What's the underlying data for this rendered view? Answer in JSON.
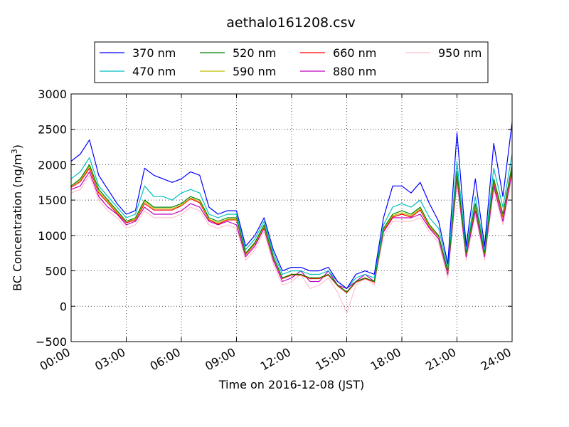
{
  "chart_data": {
    "type": "line",
    "title": "aethalo161208.csv",
    "xlabel": "Time on 2016-12-08 (JST)",
    "ylabel_main": "BC Concentration (ng/m",
    "ylabel_sup": "3",
    "ylabel_close": ")",
    "xlim": [
      0,
      24
    ],
    "ylim": [
      -500,
      3000
    ],
    "grid": true,
    "legend_position": "top",
    "x_ticks": [
      {
        "v": 0,
        "label": "00:00"
      },
      {
        "v": 3,
        "label": "03:00"
      },
      {
        "v": 6,
        "label": "06:00"
      },
      {
        "v": 9,
        "label": "09:00"
      },
      {
        "v": 12,
        "label": "12:00"
      },
      {
        "v": 15,
        "label": "15:00"
      },
      {
        "v": 18,
        "label": "18:00"
      },
      {
        "v": 21,
        "label": "21:00"
      },
      {
        "v": 24,
        "label": "24:00"
      }
    ],
    "y_ticks": [
      {
        "v": -500,
        "label": "−500"
      },
      {
        "v": 0,
        "label": "0"
      },
      {
        "v": 500,
        "label": "500"
      },
      {
        "v": 1000,
        "label": "1000"
      },
      {
        "v": 1500,
        "label": "1500"
      },
      {
        "v": 2000,
        "label": "2000"
      },
      {
        "v": 2500,
        "label": "2500"
      },
      {
        "v": 3000,
        "label": "3000"
      }
    ],
    "x": [
      0,
      0.5,
      1,
      1.5,
      2,
      2.5,
      3,
      3.5,
      4,
      4.5,
      5,
      5.5,
      6,
      6.5,
      7,
      7.5,
      8,
      8.5,
      9,
      9.5,
      10,
      10.5,
      11,
      11.5,
      12,
      12.5,
      13,
      13.5,
      14,
      14.5,
      15,
      15.5,
      16,
      16.5,
      17,
      17.5,
      18,
      18.5,
      19,
      19.5,
      20,
      20.5,
      21,
      21.5,
      22,
      22.5,
      23,
      23.5,
      24
    ],
    "series": [
      {
        "name": "370 nm",
        "color": "#0000ff",
        "values": [
          2050,
          2150,
          2350,
          1850,
          1650,
          1450,
          1300,
          1350,
          1950,
          1850,
          1800,
          1750,
          1800,
          1900,
          1850,
          1400,
          1300,
          1350,
          1350,
          850,
          1000,
          1250,
          800,
          500,
          550,
          550,
          500,
          500,
          550,
          350,
          250,
          450,
          500,
          450,
          1250,
          1700,
          1700,
          1600,
          1750,
          1450,
          1200,
          600,
          2450,
          850,
          1800,
          850,
          2300,
          1550,
          2600
        ]
      },
      {
        "name": "470 nm",
        "color": "#00bfbf",
        "values": [
          1800,
          1900,
          2100,
          1700,
          1550,
          1400,
          1250,
          1300,
          1700,
          1550,
          1550,
          1500,
          1600,
          1650,
          1600,
          1300,
          1250,
          1300,
          1300,
          800,
          950,
          1200,
          750,
          450,
          500,
          500,
          450,
          450,
          500,
          350,
          250,
          400,
          450,
          400,
          1150,
          1400,
          1450,
          1400,
          1500,
          1250,
          1100,
          550,
          2050,
          800,
          1550,
          800,
          1950,
          1400,
          2150
        ]
      },
      {
        "name": "520 nm",
        "color": "#008000",
        "values": [
          1700,
          1800,
          2000,
          1650,
          1500,
          1350,
          1200,
          1250,
          1500,
          1400,
          1400,
          1400,
          1450,
          1550,
          1500,
          1250,
          1200,
          1250,
          1250,
          750,
          900,
          1150,
          700,
          400,
          450,
          450,
          400,
          400,
          450,
          300,
          200,
          350,
          400,
          350,
          1100,
          1300,
          1350,
          1300,
          1400,
          1150,
          1000,
          500,
          1900,
          750,
          1450,
          750,
          1800,
          1300,
          2000
        ]
      },
      {
        "name": "590 nm",
        "color": "#bfbf00",
        "values": [
          1700,
          1780,
          1980,
          1620,
          1480,
          1330,
          1200,
          1230,
          1480,
          1380,
          1380,
          1380,
          1430,
          1530,
          1480,
          1230,
          1180,
          1230,
          1230,
          740,
          890,
          1130,
          690,
          400,
          450,
          450,
          400,
          400,
          450,
          300,
          200,
          350,
          400,
          350,
          1080,
          1280,
          1320,
          1280,
          1380,
          1130,
          990,
          490,
          1880,
          740,
          1430,
          740,
          1780,
          1280,
          1980
        ]
      },
      {
        "name": "660 nm",
        "color": "#ff0000",
        "values": [
          1680,
          1760,
          1950,
          1600,
          1460,
          1310,
          1180,
          1220,
          1450,
          1360,
          1360,
          1360,
          1420,
          1520,
          1460,
          1220,
          1160,
          1220,
          1220,
          730,
          880,
          1120,
          680,
          390,
          440,
          440,
          390,
          390,
          440,
          290,
          190,
          340,
          390,
          340,
          1070,
          1260,
          1300,
          1260,
          1360,
          1120,
          980,
          480,
          1850,
          730,
          1410,
          730,
          1750,
          1260,
          1950
        ]
      },
      {
        "name": "880 nm",
        "color": "#bf00bf",
        "values": [
          1650,
          1700,
          1900,
          1550,
          1400,
          1300,
          1150,
          1200,
          1400,
          1300,
          1300,
          1300,
          1350,
          1450,
          1400,
          1200,
          1150,
          1200,
          1150,
          700,
          850,
          1100,
          650,
          350,
          400,
          500,
          350,
          350,
          500,
          300,
          250,
          350,
          450,
          350,
          1050,
          1250,
          1250,
          1250,
          1300,
          1100,
          950,
          450,
          1800,
          700,
          1350,
          700,
          1700,
          1200,
          1900
        ]
      },
      {
        "name": "950 nm",
        "color": "#ffc0cb",
        "values": [
          1600,
          1650,
          1850,
          1500,
          1350,
          1250,
          1100,
          1150,
          1350,
          1250,
          1250,
          1250,
          1300,
          1400,
          1350,
          1150,
          1100,
          1150,
          1100,
          650,
          800,
          1050,
          600,
          300,
          350,
          450,
          250,
          300,
          400,
          200,
          -100,
          300,
          400,
          300,
          1000,
          1200,
          1200,
          1200,
          1250,
          1050,
          900,
          400,
          1750,
          650,
          1300,
          650,
          1650,
          1150,
          1850
        ]
      }
    ]
  }
}
